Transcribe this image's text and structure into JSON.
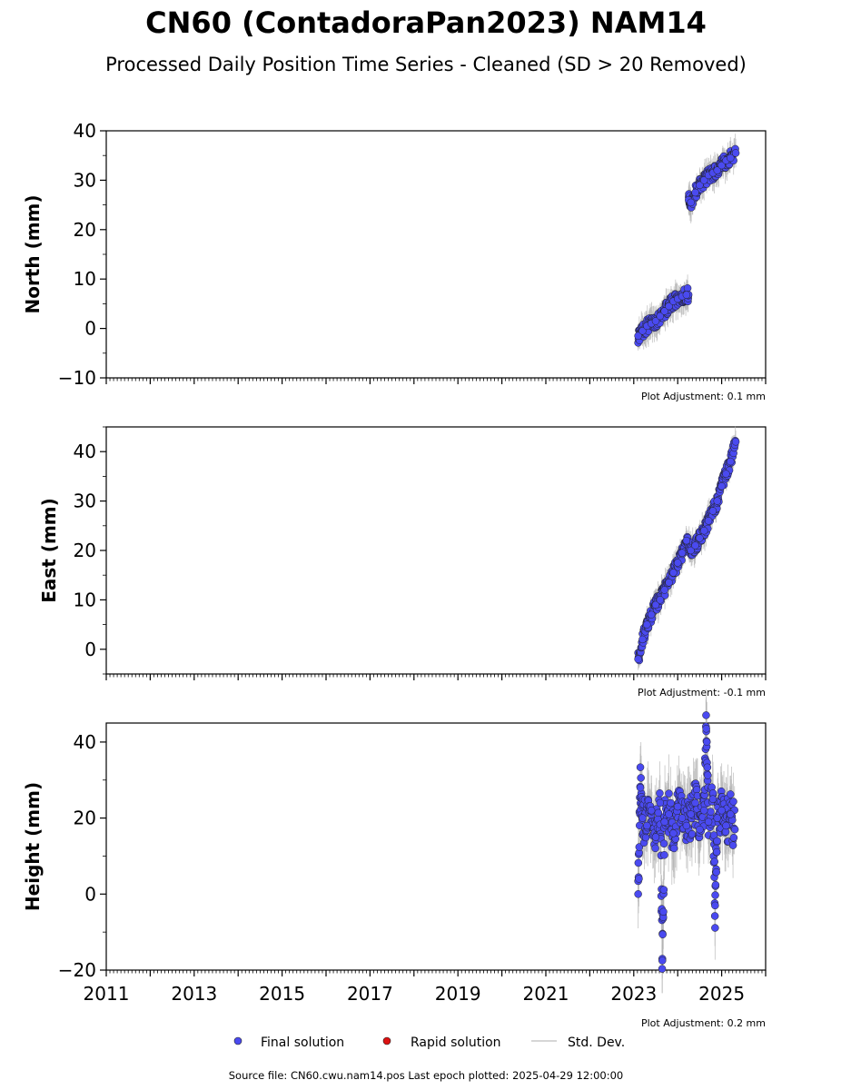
{
  "title": "CN60 (ContadoraPan2023) NAM14",
  "subtitle": "Processed Daily Position Time Series - Cleaned (SD > 20 Removed)",
  "legend": {
    "final": "Final solution",
    "rapid": "Rapid solution",
    "std": "Std. Dev."
  },
  "footer": "Source file: CN60.cwu.nam14.pos  Last epoch plotted: 2025-04-29 12:00:00",
  "colors": {
    "final": "#4a4af0",
    "rapid": "#dd1111",
    "std": "#b4b4b4"
  },
  "chart_data": [
    {
      "type": "scatter",
      "ylabel": "North (mm)",
      "adjustment": "Plot Adjustment: 0.1 mm",
      "xlim": [
        2011,
        2026
      ],
      "ylim": [
        -10,
        40
      ],
      "yticks": [
        -10,
        0,
        10,
        20,
        30,
        40
      ],
      "ytick_labels": [
        "−10",
        "0",
        "10",
        "20",
        "30",
        "40"
      ],
      "series": [
        {
          "x": [
            2023.1,
            2023.2,
            2023.3,
            2023.4,
            2023.5,
            2023.6,
            2023.7,
            2023.8,
            2023.9,
            2024.0,
            2024.1,
            2024.2,
            2024.25,
            2024.3,
            2024.4,
            2024.5,
            2024.6,
            2024.7,
            2024.8,
            2024.9,
            2025.0,
            2025.1,
            2025.2,
            2025.32
          ],
          "y": [
            -1.5,
            -0.5,
            0.5,
            1.0,
            1.5,
            2.5,
            3.5,
            4.5,
            5.5,
            6.0,
            6.5,
            6.8,
            26.0,
            25.5,
            27.5,
            29.0,
            30.0,
            31.0,
            31.5,
            32.0,
            33.0,
            34.0,
            34.5,
            35.5
          ]
        }
      ]
    },
    {
      "type": "scatter",
      "ylabel": "East (mm)",
      "adjustment": "Plot Adjustment: -0.1 mm",
      "xlim": [
        2011,
        2026
      ],
      "ylim": [
        -5,
        45
      ],
      "yticks": [
        0,
        10,
        20,
        30,
        40
      ],
      "ytick_labels": [
        "0",
        "10",
        "20",
        "30",
        "40"
      ],
      "series": [
        {
          "x": [
            2023.1,
            2023.2,
            2023.3,
            2023.4,
            2023.5,
            2023.6,
            2023.7,
            2023.8,
            2023.9,
            2024.0,
            2024.1,
            2024.2,
            2024.3,
            2024.4,
            2024.5,
            2024.6,
            2024.7,
            2024.8,
            2024.9,
            2025.0,
            2025.1,
            2025.2,
            2025.32
          ],
          "y": [
            -2.0,
            2.0,
            5.0,
            7.0,
            9.0,
            10.0,
            12.0,
            13.5,
            15.5,
            17.5,
            19.5,
            22.0,
            20.0,
            21.0,
            22.5,
            24.0,
            26.0,
            28.0,
            30.0,
            33.0,
            35.5,
            38.0,
            42.0
          ]
        }
      ]
    },
    {
      "type": "scatter",
      "ylabel": "Height (mm)",
      "adjustment": "Plot Adjustment: 0.2 mm",
      "xlim": [
        2011,
        2026
      ],
      "ylim": [
        -20,
        45
      ],
      "yticks": [
        -20,
        0,
        20,
        40
      ],
      "ytick_labels": [
        "−20",
        "0",
        "20",
        "40"
      ],
      "xticks": [
        2011,
        2013,
        2015,
        2017,
        2019,
        2021,
        2023,
        2025
      ],
      "series": [
        {
          "x": [
            2023.1,
            2023.15,
            2023.2,
            2023.3,
            2023.4,
            2023.5,
            2023.6,
            2023.65,
            2023.7,
            2023.8,
            2023.9,
            2024.0,
            2024.1,
            2024.2,
            2024.3,
            2024.4,
            2024.5,
            2024.6,
            2024.65,
            2024.7,
            2024.8,
            2024.85,
            2024.9,
            2025.0,
            2025.1,
            2025.2,
            2025.3
          ],
          "y": [
            0.0,
            28.0,
            20.0,
            18.0,
            22.0,
            15.0,
            24.0,
            -17.5,
            19.0,
            21.0,
            16.0,
            23.0,
            20.0,
            18.0,
            21.0,
            24.0,
            17.0,
            22.0,
            43.5,
            19.0,
            25.0,
            -3.0,
            20.0,
            22.0,
            18.0,
            21.0,
            17.0
          ]
        }
      ]
    }
  ]
}
